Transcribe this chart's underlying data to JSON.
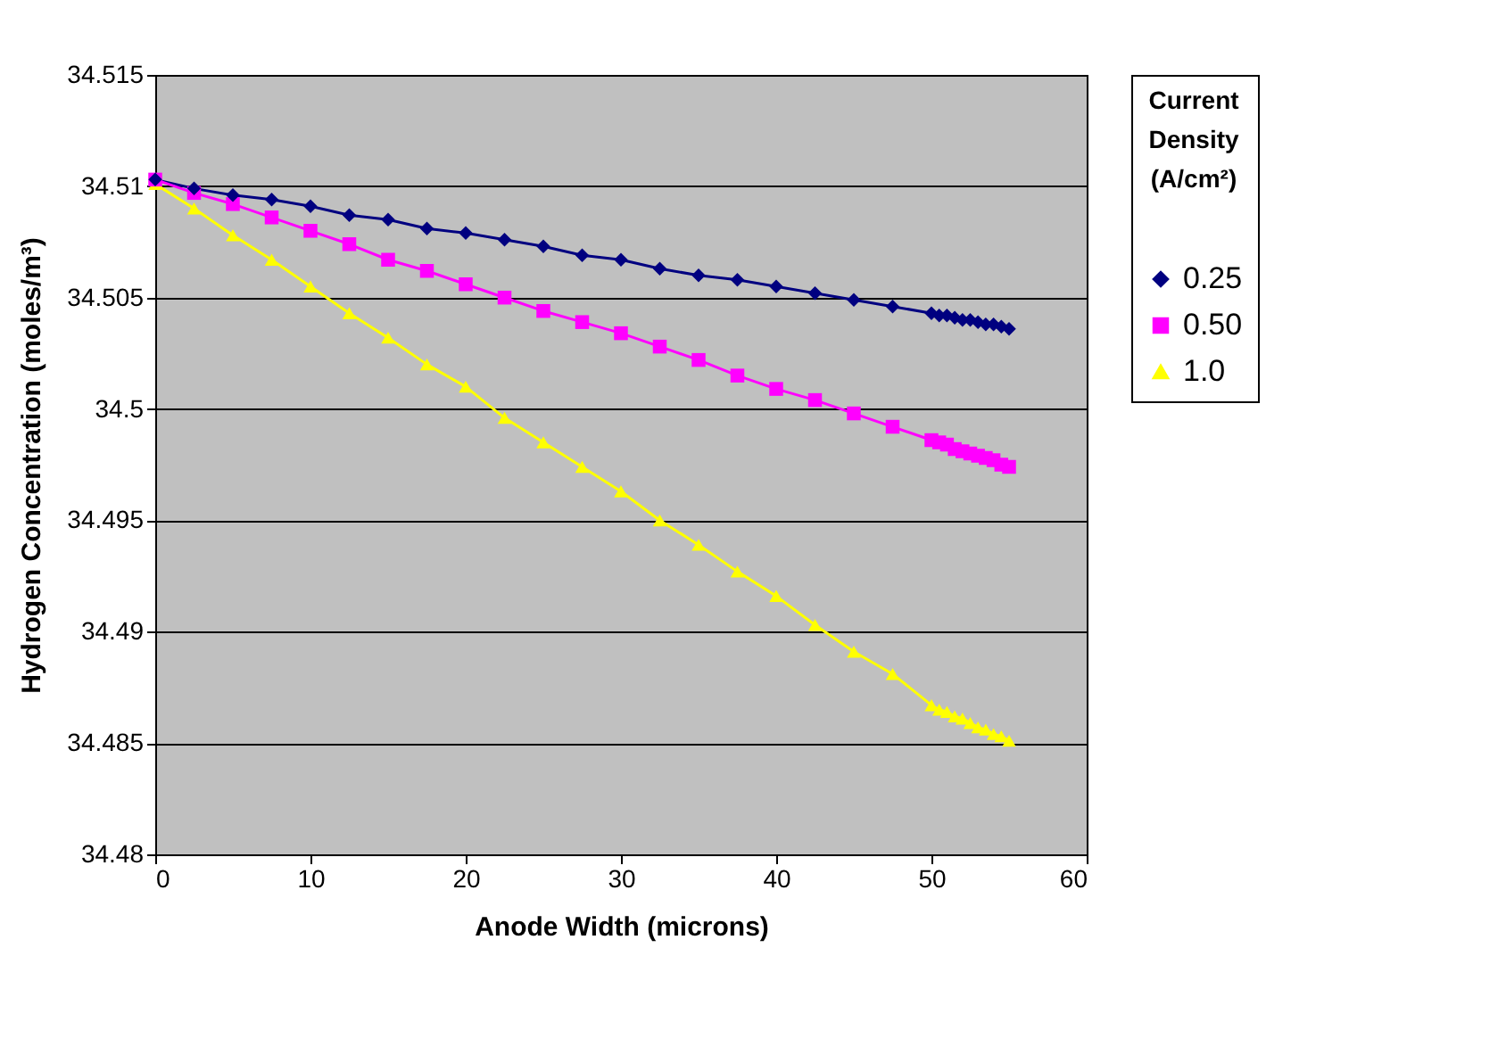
{
  "chart_data": {
    "type": "line",
    "xlabel": "Anode Width (microns)",
    "ylabel": "Hydrogen Concentration (moles/m³)",
    "legend_title": "Current Density (A/cm²)",
    "x": [
      0,
      2.5,
      5,
      7.5,
      10,
      12.5,
      15,
      17.5,
      20,
      22.5,
      25,
      27.5,
      30,
      32.5,
      35,
      37.5,
      40,
      42.5,
      45,
      47.5,
      50,
      50.5,
      51,
      51.5,
      52,
      52.5,
      53,
      53.5,
      54,
      54.5,
      55
    ],
    "series": [
      {
        "name": "0.25",
        "color": "#000080",
        "marker": "diamond",
        "values": [
          34.5103,
          34.5099,
          34.5096,
          34.5094,
          34.5091,
          34.5087,
          34.5085,
          34.5081,
          34.5079,
          34.5076,
          34.5073,
          34.5069,
          34.5067,
          34.5063,
          34.506,
          34.5058,
          34.5055,
          34.5052,
          34.5049,
          34.5046,
          34.5043,
          34.5042,
          34.5042,
          34.5041,
          34.504,
          34.504,
          34.5039,
          34.5038,
          34.5038,
          34.5037,
          34.5036
        ]
      },
      {
        "name": "0.50",
        "color": "#ff00ff",
        "marker": "square",
        "values": [
          34.5103,
          34.5097,
          34.5092,
          34.5086,
          34.508,
          34.5074,
          34.5067,
          34.5062,
          34.5056,
          34.505,
          34.5044,
          34.5039,
          34.5034,
          34.5028,
          34.5022,
          34.5015,
          34.5009,
          34.5004,
          34.4998,
          34.4992,
          34.4986,
          34.4985,
          34.4984,
          34.4982,
          34.4981,
          34.498,
          34.4979,
          34.4978,
          34.4977,
          34.4975,
          34.4974
        ]
      },
      {
        "name": "1.0",
        "color": "#ffff00",
        "marker": "triangle",
        "values": [
          34.5101,
          34.509,
          34.5078,
          34.5067,
          34.5055,
          34.5043,
          34.5032,
          34.502,
          34.501,
          34.4996,
          34.4985,
          34.4974,
          34.4963,
          34.495,
          34.4939,
          34.4927,
          34.4916,
          34.4903,
          34.4891,
          34.4881,
          34.4867,
          34.4865,
          34.4864,
          34.4862,
          34.4861,
          34.4859,
          34.4857,
          34.4856,
          34.4854,
          34.4853,
          34.4851
        ]
      }
    ],
    "xlim": [
      0,
      60
    ],
    "xticks": [
      0,
      10,
      20,
      30,
      40,
      50,
      60
    ],
    "ylim": [
      34.48,
      34.515
    ],
    "yticks": [
      34.48,
      34.485,
      34.49,
      34.495,
      34.5,
      34.505,
      34.51,
      34.515
    ],
    "grid": "y",
    "legend": "right"
  }
}
